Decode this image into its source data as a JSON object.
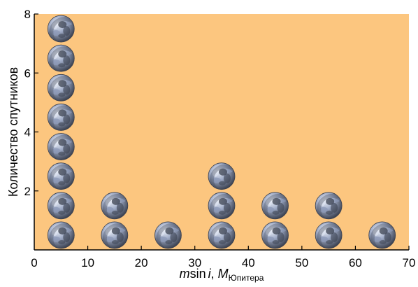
{
  "chart_data": {
    "type": "scatter",
    "marker": "planet-icon",
    "title": "",
    "xlabel": {
      "prefix": "m",
      "sin": "sin",
      "i": "i",
      "comma": ", ",
      "M": "M",
      "subscript": "Юпитера"
    },
    "ylabel": "Количество спутников",
    "xlim": [
      0,
      70
    ],
    "ylim": [
      0,
      8
    ],
    "xticks": [
      0,
      10,
      20,
      30,
      40,
      50,
      60,
      70
    ],
    "yticks": [
      2,
      4,
      6,
      8
    ],
    "bins": [
      {
        "x": 5,
        "count": 8
      },
      {
        "x": 15,
        "count": 2
      },
      {
        "x": 25,
        "count": 1
      },
      {
        "x": 35,
        "count": 3
      },
      {
        "x": 45,
        "count": 2
      },
      {
        "x": 55,
        "count": 2
      },
      {
        "x": 65,
        "count": 1
      }
    ],
    "colors": {
      "plot_background": "#fcc67f",
      "axis": "#000000",
      "planet_light": "#dfe6f2",
      "planet_mid": "#8d9ab8",
      "planet_dark": "#3b4150"
    },
    "grid": false
  }
}
